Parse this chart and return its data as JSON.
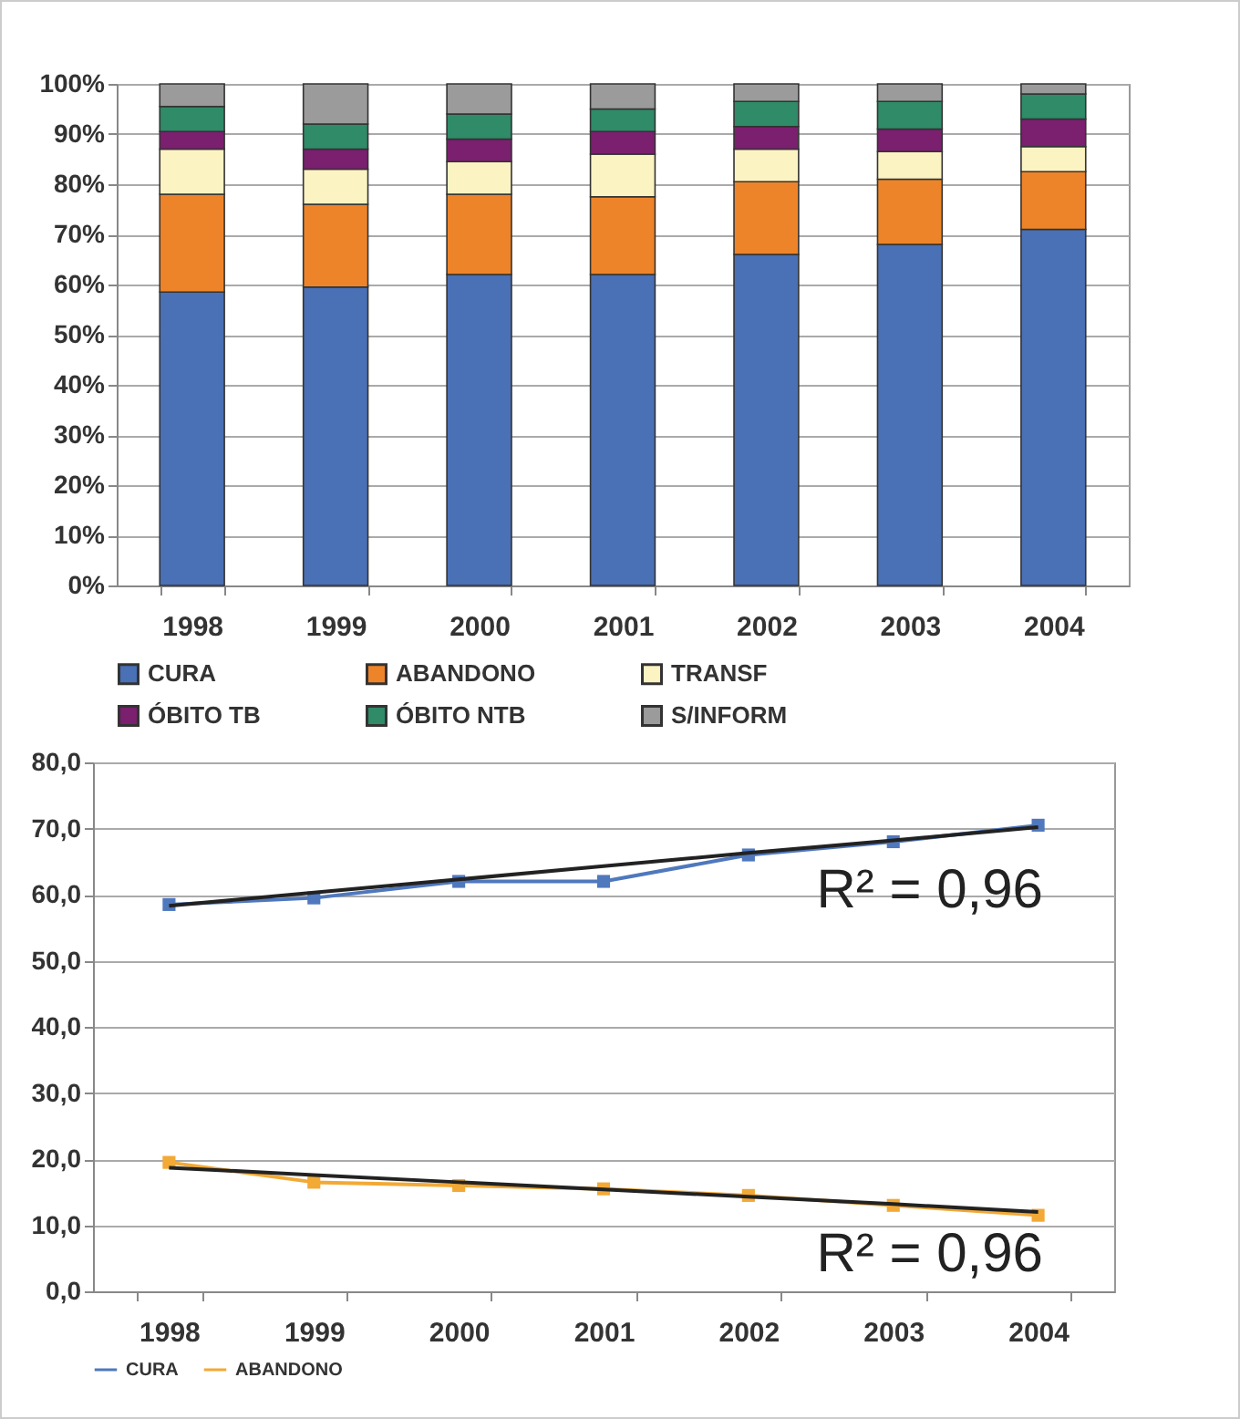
{
  "chart_data": [
    {
      "type": "bar",
      "stacked": true,
      "categories": [
        "1998",
        "1999",
        "2000",
        "2001",
        "2002",
        "2003",
        "2004"
      ],
      "series": [
        {
          "name": "CURA",
          "color": "#4a70b5",
          "values": [
            58.5,
            59.5,
            62,
            62,
            66,
            68,
            71
          ]
        },
        {
          "name": "ABANDONO",
          "color": "#ee8429",
          "values": [
            19.5,
            16.5,
            16,
            15.5,
            14.5,
            13,
            11.5
          ]
        },
        {
          "name": "TRANSF",
          "color": "#fbf3c2",
          "values": [
            9,
            7,
            6.5,
            8.5,
            6.5,
            5.5,
            5
          ]
        },
        {
          "name": "ÓBITO TB",
          "color": "#7b1f6f",
          "values": [
            3.5,
            4,
            4.5,
            4.5,
            4.5,
            4.5,
            5.5
          ]
        },
        {
          "name": "ÓBITO NTB",
          "color": "#2f8b68",
          "values": [
            5,
            5,
            5,
            4.5,
            5,
            5.5,
            5
          ]
        },
        {
          "name": "S/INFORM",
          "color": "#9b9b9b",
          "values": [
            4.5,
            8,
            6,
            5,
            3.5,
            3.5,
            2
          ]
        }
      ],
      "ylim": [
        0,
        100
      ],
      "yticks": [
        {
          "value": 0,
          "label": "0%"
        },
        {
          "value": 10,
          "label": "10%"
        },
        {
          "value": 20,
          "label": "20%"
        },
        {
          "value": 30,
          "label": "30%"
        },
        {
          "value": 40,
          "label": "40%"
        },
        {
          "value": 50,
          "label": "50%"
        },
        {
          "value": 60,
          "label": "60%"
        },
        {
          "value": 70,
          "label": "70%"
        },
        {
          "value": 80,
          "label": "80%"
        },
        {
          "value": 90,
          "label": "90%"
        },
        {
          "value": 100,
          "label": "100%"
        }
      ],
      "grid": "y",
      "legend": "bottom"
    },
    {
      "type": "line",
      "categories": [
        "1998",
        "1999",
        "2000",
        "2001",
        "2002",
        "2003",
        "2004"
      ],
      "series": [
        {
          "name": "CURA",
          "color": "#4f78bd",
          "marker": "square",
          "values": [
            58.5,
            59.5,
            62,
            62,
            66,
            68,
            70.5
          ]
        },
        {
          "name": "ABANDONO",
          "color": "#f2a935",
          "marker": "square",
          "values": [
            19.5,
            16.5,
            16,
            15.5,
            14.5,
            13,
            11.5
          ]
        },
        {
          "color": "#222222",
          "marker": "none",
          "values": [
            58.3,
            60.3,
            62.3,
            64.3,
            66.3,
            68.2,
            70.2
          ]
        },
        {
          "color": "#222222",
          "marker": "none",
          "values": [
            18.7,
            17.6,
            16.5,
            15.4,
            14.3,
            13.2,
            12
          ]
        }
      ],
      "ylim": [
        0,
        80
      ],
      "yticks": [
        {
          "value": 0,
          "label": "0,0"
        },
        {
          "value": 10,
          "label": "10,0"
        },
        {
          "value": 20,
          "label": "20,0"
        },
        {
          "value": 30,
          "label": "30,0"
        },
        {
          "value": 40,
          "label": "40,0"
        },
        {
          "value": 50,
          "label": "50,0"
        },
        {
          "value": 60,
          "label": "60,0"
        },
        {
          "value": 70,
          "label": "70,0"
        },
        {
          "value": 80,
          "label": "80,0"
        }
      ],
      "grid": "y",
      "legend": "bottom",
      "annotations": [
        "R² = 0,96",
        "R² = 0,96"
      ]
    }
  ]
}
